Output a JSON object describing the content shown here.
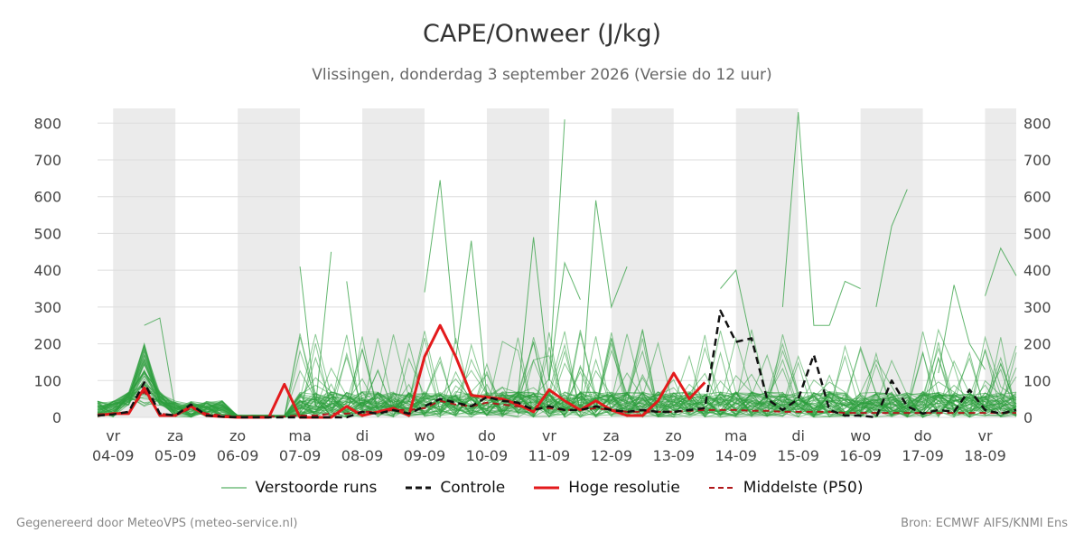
{
  "title": "CAPE/Onweer (J/kg)",
  "subtitle": "Vlissingen, donderdag  3 september 2026 (Versie do 12 uur)",
  "footer": {
    "left": "Gegenereerd door MeteoVPS (meteo-service.nl)",
    "right": "Bron: ECMWF AIFS/KNMI Ens"
  },
  "colors": {
    "ensemble": "#2e9e3e",
    "control": "#111111",
    "high_res": "#e31a1c",
    "median": "#b0171a",
    "weekend_band": "#ebebeb",
    "grid": "#dddddd"
  },
  "legend": [
    {
      "label": "Verstoorde runs",
      "style": "ensemble"
    },
    {
      "label": "Controle",
      "style": "control"
    },
    {
      "label": "Hoge resolutie",
      "style": "high_res"
    },
    {
      "label": "Middelste (P50)",
      "style": "median"
    }
  ],
  "chart_data": {
    "type": "line",
    "x_unit": "day offset from 04-09-2026",
    "xlim": [
      -0.25,
      14.5
    ],
    "ylim": [
      0,
      840
    ],
    "y_ticks": [
      0,
      100,
      200,
      300,
      400,
      500,
      600,
      700,
      800
    ],
    "grid": true,
    "dual_y_axis": true,
    "legend_position": "bottom",
    "x_ticks": [
      {
        "x": 0,
        "day": "vr",
        "date": "04-09"
      },
      {
        "x": 1,
        "day": "za",
        "date": "05-09"
      },
      {
        "x": 2,
        "day": "zo",
        "date": "06-09"
      },
      {
        "x": 3,
        "day": "ma",
        "date": "07-09"
      },
      {
        "x": 4,
        "day": "di",
        "date": "08-09"
      },
      {
        "x": 5,
        "day": "wo",
        "date": "09-09"
      },
      {
        "x": 6,
        "day": "do",
        "date": "10-09"
      },
      {
        "x": 7,
        "day": "vr",
        "date": "11-09"
      },
      {
        "x": 8,
        "day": "za",
        "date": "12-09"
      },
      {
        "x": 9,
        "day": "zo",
        "date": "13-09"
      },
      {
        "x": 10,
        "day": "ma",
        "date": "14-09"
      },
      {
        "x": 11,
        "day": "di",
        "date": "15-09"
      },
      {
        "x": 12,
        "day": "wo",
        "date": "16-09"
      },
      {
        "x": 13,
        "day": "do",
        "date": "17-09"
      },
      {
        "x": 14,
        "day": "vr",
        "date": "18-09"
      }
    ],
    "shaded_bands": [
      [
        0,
        1
      ],
      [
        2,
        3
      ],
      [
        4,
        5
      ],
      [
        6,
        7
      ],
      [
        8,
        9
      ],
      [
        10,
        11
      ],
      [
        12,
        13
      ],
      [
        14,
        14.5
      ]
    ],
    "ensemble_members": 50,
    "ensemble_highlights": [
      {
        "x": [
          0.5,
          0.75,
          1.0
        ],
        "y": [
          250,
          270,
          20
        ]
      },
      {
        "x": [
          3.0,
          3.25,
          3.5
        ],
        "y": [
          410,
          30,
          450
        ]
      },
      {
        "x": [
          3.75,
          4.0
        ],
        "y": [
          370,
          40
        ]
      },
      {
        "x": [
          5.0,
          5.25,
          5.5
        ],
        "y": [
          340,
          645,
          200
        ]
      },
      {
        "x": [
          5.5,
          5.75,
          6.0
        ],
        "y": [
          160,
          480,
          60
        ]
      },
      {
        "x": [
          6.5,
          6.75,
          7.0,
          7.25
        ],
        "y": [
          60,
          490,
          100,
          810
        ]
      },
      {
        "x": [
          7.0,
          7.25,
          7.5
        ],
        "y": [
          100,
          420,
          320
        ]
      },
      {
        "x": [
          7.5,
          7.75,
          8.0,
          8.25
        ],
        "y": [
          20,
          590,
          300,
          410
        ]
      },
      {
        "x": [
          9.75,
          10.0,
          10.25
        ],
        "y": [
          350,
          400,
          200
        ]
      },
      {
        "x": [
          10.75,
          11.0,
          11.25,
          11.5
        ],
        "y": [
          300,
          830,
          250,
          250
        ]
      },
      {
        "x": [
          11.5,
          11.75,
          12.0
        ],
        "y": [
          250,
          370,
          350
        ]
      },
      {
        "x": [
          12.25,
          12.5,
          12.75
        ],
        "y": [
          300,
          520,
          620
        ]
      },
      {
        "x": [
          13.25,
          13.5,
          13.75,
          14.0
        ],
        "y": [
          120,
          360,
          200,
          130
        ]
      },
      {
        "x": [
          14.0,
          14.25,
          14.5
        ],
        "y": [
          330,
          460,
          385
        ]
      }
    ],
    "series": [
      {
        "name": "Controle",
        "x": [
          -0.25,
          0,
          0.25,
          0.5,
          0.75,
          1.0,
          1.25,
          1.5,
          1.75,
          2.0,
          2.25,
          2.5,
          2.75,
          3.0,
          3.25,
          3.5,
          3.75,
          4.0,
          4.25,
          4.5,
          4.75,
          5.0,
          5.25,
          5.5,
          5.75,
          6.0,
          6.25,
          6.5,
          6.75,
          7.0,
          7.25,
          7.5,
          7.75,
          8.0,
          8.25,
          8.5,
          8.75,
          9.0,
          9.25,
          9.5,
          9.75,
          10.0,
          10.25,
          10.5,
          10.75,
          11.0,
          11.25,
          11.5,
          11.75,
          12.0,
          12.25,
          12.5,
          12.75,
          13.0,
          13.25,
          13.5,
          13.75,
          14.0,
          14.25,
          14.5
        ],
        "y": [
          5,
          8,
          15,
          95,
          10,
          5,
          35,
          5,
          2,
          0,
          0,
          0,
          0,
          0,
          0,
          0,
          0,
          15,
          10,
          20,
          10,
          30,
          50,
          40,
          30,
          55,
          45,
          40,
          20,
          30,
          20,
          20,
          30,
          20,
          15,
          20,
          15,
          15,
          20,
          25,
          290,
          205,
          215,
          50,
          20,
          50,
          170,
          20,
          5,
          5,
          0,
          100,
          30,
          10,
          20,
          15,
          75,
          20,
          10,
          20
        ]
      },
      {
        "name": "Hoge resolutie",
        "x": [
          -0.25,
          0,
          0.25,
          0.5,
          0.75,
          1.0,
          1.25,
          1.5,
          1.75,
          2.0,
          2.25,
          2.5,
          2.75,
          3.0,
          3.25,
          3.5,
          3.75,
          4.0,
          4.25,
          4.5,
          4.75,
          5.0,
          5.25,
          5.5,
          5.75,
          6.0,
          6.25,
          6.5,
          6.75,
          7.0,
          7.25,
          7.5,
          7.75,
          8.0,
          8.25,
          8.5,
          8.75,
          9.0,
          9.25,
          9.5,
          9.75
        ],
        "y": [
          5,
          10,
          10,
          80,
          5,
          5,
          30,
          5,
          2,
          0,
          0,
          0,
          90,
          0,
          0,
          0,
          30,
          5,
          15,
          25,
          5,
          165,
          250,
          165,
          60,
          55,
          50,
          35,
          15,
          75,
          45,
          20,
          45,
          20,
          5,
          5,
          45,
          120,
          50,
          95,
          null
        ]
      },
      {
        "name": "Middelste (P50)",
        "x": [
          -0.25,
          0,
          0.25,
          0.5,
          0.75,
          1.0,
          1.25,
          1.5,
          1.75,
          2.0,
          2.25,
          2.5,
          2.75,
          3.0,
          3.25,
          3.5,
          3.75,
          4.0,
          4.25,
          4.5,
          4.75,
          5.0,
          5.25,
          5.5,
          5.75,
          6.0,
          6.25,
          6.5,
          6.75,
          7.0,
          7.25,
          7.5,
          7.75,
          8.0,
          8.25,
          8.5,
          8.75,
          9.0,
          9.25,
          9.5,
          9.75,
          10.0,
          10.25,
          10.5,
          10.75,
          11.0,
          11.25,
          11.5,
          11.75,
          12.0,
          12.25,
          12.5,
          12.75,
          13.0,
          13.25,
          13.5,
          13.75,
          14.0,
          14.25,
          14.5
        ],
        "y": [
          8,
          10,
          15,
          70,
          10,
          5,
          25,
          10,
          5,
          2,
          2,
          2,
          2,
          5,
          5,
          10,
          10,
          15,
          15,
          20,
          20,
          25,
          45,
          35,
          30,
          40,
          35,
          30,
          25,
          25,
          20,
          20,
          25,
          20,
          15,
          15,
          15,
          15,
          18,
          20,
          20,
          20,
          18,
          18,
          15,
          15,
          15,
          15,
          12,
          12,
          12,
          12,
          12,
          12,
          12,
          12,
          12,
          12,
          12,
          12
        ]
      }
    ]
  }
}
